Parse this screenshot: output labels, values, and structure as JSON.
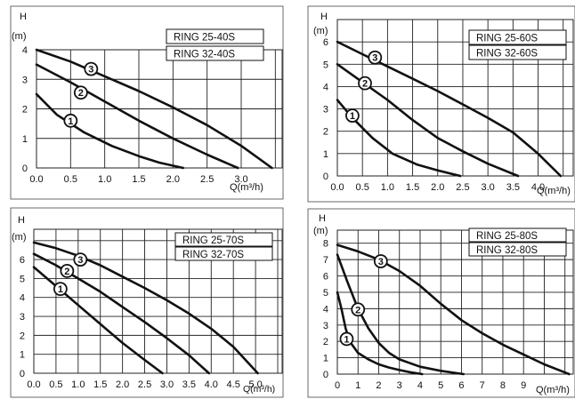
{
  "chart_data": [
    {
      "type": "line",
      "ylabel": "H",
      "yunit": "(m)",
      "xlabel": "Q(m³/h)",
      "legend_box": [
        "RING 25-40S",
        "RING 32-40S"
      ],
      "xlim": [
        0,
        3.6
      ],
      "ylim": [
        0,
        4
      ],
      "x_ticks": [
        "0.0",
        "0.5",
        "1.0",
        "1.5",
        "2.0",
        "2.5",
        "3.0"
      ],
      "x_tick_values": [
        0,
        0.5,
        1.0,
        1.5,
        2.0,
        2.5,
        3.0
      ],
      "y_ticks": [
        "0",
        "1",
        "2",
        "3",
        "4"
      ],
      "y_tick_values": [
        0,
        1,
        2,
        3,
        4
      ],
      "grid": true,
      "series": [
        {
          "name": "1",
          "x": [
            0.0,
            0.3,
            0.7,
            1.1,
            1.5,
            1.8,
            2.15
          ],
          "y": [
            2.5,
            1.8,
            1.2,
            0.75,
            0.4,
            0.18,
            0.0
          ]
        },
        {
          "name": "2",
          "x": [
            0.0,
            0.5,
            1.0,
            1.5,
            2.0,
            2.5,
            2.95
          ],
          "y": [
            3.5,
            2.9,
            2.25,
            1.6,
            1.0,
            0.45,
            0.0
          ]
        },
        {
          "name": "3",
          "x": [
            0.0,
            0.5,
            1.0,
            1.5,
            2.0,
            2.5,
            3.0,
            3.45
          ],
          "y": [
            4.0,
            3.6,
            3.1,
            2.6,
            2.05,
            1.45,
            0.75,
            0.0
          ]
        }
      ],
      "label_points": {
        "1": [
          0.5,
          1.6
        ],
        "2": [
          0.65,
          2.55
        ],
        "3": [
          0.8,
          3.35
        ]
      }
    },
    {
      "type": "line",
      "ylabel": "H",
      "yunit": "(m)",
      "xlabel": "Q(m³/h)",
      "legend_box": [
        "RING 25-60S",
        "RING 32-60S"
      ],
      "xlim": [
        0,
        4.7
      ],
      "ylim": [
        0,
        7
      ],
      "x_ticks": [
        "0.0",
        "0.5",
        "1.0",
        "1.5",
        "2.0",
        "2.5",
        "3.0",
        "3.5",
        "4.0"
      ],
      "x_tick_values": [
        0,
        0.5,
        1.0,
        1.5,
        2.0,
        2.5,
        3.0,
        3.5,
        4.0
      ],
      "y_ticks": [
        "0",
        "1",
        "2",
        "3",
        "4",
        "5",
        "6"
      ],
      "y_tick_values": [
        0,
        1,
        2,
        3,
        4,
        5,
        6
      ],
      "grid": true,
      "series": [
        {
          "name": "1",
          "x": [
            0.0,
            0.3,
            0.7,
            1.1,
            1.6,
            2.0,
            2.45
          ],
          "y": [
            3.4,
            2.6,
            1.7,
            1.0,
            0.5,
            0.25,
            0.0
          ]
        },
        {
          "name": "2",
          "x": [
            0.0,
            0.5,
            1.0,
            1.5,
            2.0,
            2.5,
            3.0,
            3.6
          ],
          "y": [
            5.0,
            4.2,
            3.4,
            2.5,
            1.7,
            1.1,
            0.55,
            0.0
          ]
        },
        {
          "name": "3",
          "x": [
            0.0,
            0.5,
            1.0,
            1.5,
            2.0,
            2.5,
            3.0,
            3.5,
            4.0,
            4.45
          ],
          "y": [
            6.0,
            5.45,
            4.9,
            4.35,
            3.8,
            3.2,
            2.6,
            1.95,
            1.0,
            0.0
          ]
        }
      ],
      "label_points": {
        "1": [
          0.3,
          2.7
        ],
        "2": [
          0.55,
          4.15
        ],
        "3": [
          0.75,
          5.3
        ]
      }
    },
    {
      "type": "line",
      "ylabel": "H",
      "yunit": "(m)",
      "xlabel": "Q(m³/h)",
      "legend_box": [
        "RING 25-70S",
        "RING 32-70S"
      ],
      "xlim": [
        0,
        5.6
      ],
      "ylim": [
        0,
        7.6
      ],
      "x_ticks": [
        "0.0",
        "0.5",
        "1.0",
        "1.5",
        "2.0",
        "2.5",
        "3.0",
        "3.5",
        "4.0",
        "4.5",
        "5.0"
      ],
      "x_tick_values": [
        0,
        0.5,
        1.0,
        1.5,
        2.0,
        2.5,
        3.0,
        3.5,
        4.0,
        4.5,
        5.0
      ],
      "y_ticks": [
        "0",
        "1",
        "2",
        "3",
        "4",
        "5",
        "6"
      ],
      "y_tick_values": [
        0,
        1,
        2,
        3,
        4,
        5,
        6
      ],
      "grid": true,
      "series": [
        {
          "name": "1",
          "x": [
            0.0,
            0.5,
            1.0,
            1.5,
            2.0,
            2.5,
            2.9
          ],
          "y": [
            5.6,
            4.6,
            3.6,
            2.6,
            1.6,
            0.7,
            0.0
          ]
        },
        {
          "name": "2",
          "x": [
            0.0,
            0.5,
            1.0,
            1.5,
            2.0,
            2.5,
            3.0,
            3.5,
            3.95
          ],
          "y": [
            6.3,
            5.7,
            5.0,
            4.3,
            3.5,
            2.7,
            1.85,
            0.95,
            0.0
          ]
        },
        {
          "name": "3",
          "x": [
            0.0,
            0.5,
            1.0,
            1.5,
            2.0,
            2.5,
            3.0,
            3.5,
            4.0,
            4.5,
            5.05
          ],
          "y": [
            6.9,
            6.6,
            6.2,
            5.7,
            5.1,
            4.5,
            3.85,
            3.15,
            2.35,
            1.4,
            0.0
          ]
        }
      ],
      "label_points": {
        "1": [
          0.6,
          4.45
        ],
        "2": [
          0.75,
          5.4
        ],
        "3": [
          1.05,
          6.0
        ]
      }
    },
    {
      "type": "line",
      "ylabel": "H",
      "yunit": "(m)",
      "xlabel": "Q(m³/h)",
      "legend_box": [
        "RING 25-80S",
        "RING 32-80S"
      ],
      "xlim": [
        0,
        11.4
      ],
      "ylim": [
        0,
        8.8
      ],
      "x_ticks": [
        "0",
        "1",
        "2",
        "3",
        "4",
        "5",
        "6",
        "7",
        "8",
        "9"
      ],
      "x_tick_values": [
        0,
        1,
        2,
        3,
        4,
        5,
        6,
        7,
        8,
        9
      ],
      "y_ticks": [
        "0",
        "1",
        "2",
        "3",
        "4",
        "5",
        "6",
        "7",
        "8"
      ],
      "y_tick_values": [
        0,
        1,
        2,
        3,
        4,
        5,
        6,
        7,
        8
      ],
      "grid": true,
      "series": [
        {
          "name": "1",
          "x": [
            0.0,
            0.2,
            0.4,
            0.6,
            1.0,
            1.5,
            2.0,
            2.5,
            3.0,
            3.5,
            4.1
          ],
          "y": [
            5.0,
            4.0,
            2.8,
            2.0,
            1.3,
            0.9,
            0.6,
            0.4,
            0.25,
            0.12,
            0.0
          ]
        },
        {
          "name": "2",
          "x": [
            0.0,
            0.5,
            1.0,
            1.5,
            2.0,
            2.5,
            3.0,
            4.0,
            5.0,
            6.1
          ],
          "y": [
            7.3,
            5.6,
            4.0,
            2.8,
            1.9,
            1.3,
            0.9,
            0.45,
            0.2,
            0.0
          ]
        },
        {
          "name": "3",
          "x": [
            0.0,
            1.0,
            2.0,
            3.0,
            4.0,
            5.0,
            6.0,
            7.0,
            8.0,
            9.0,
            10.0,
            11.2
          ],
          "y": [
            7.9,
            7.5,
            7.0,
            6.3,
            5.4,
            4.3,
            3.3,
            2.5,
            1.8,
            1.2,
            0.6,
            0.0
          ]
        }
      ],
      "label_points": {
        "1": [
          0.45,
          2.15
        ],
        "2": [
          1.0,
          3.95
        ],
        "3": [
          2.1,
          6.9
        ]
      }
    }
  ]
}
